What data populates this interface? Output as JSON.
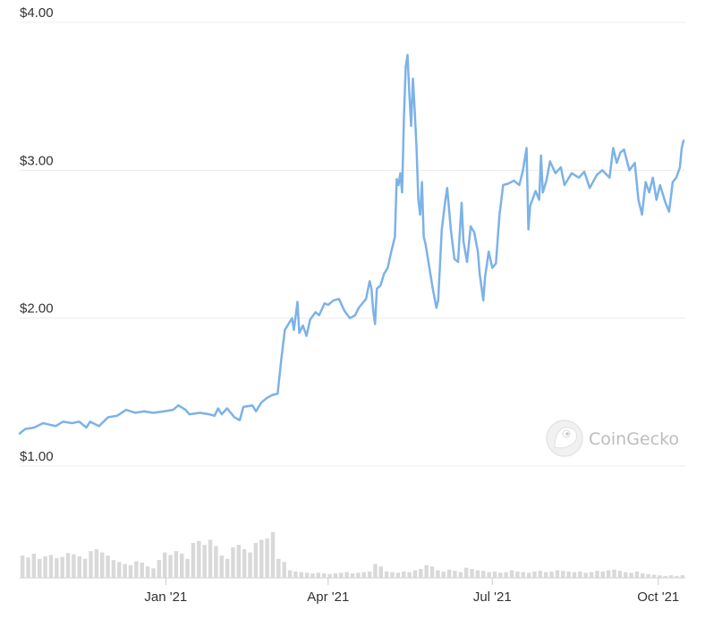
{
  "chart_data": {
    "type": "line",
    "title": "",
    "xlabel": "",
    "ylabel": "",
    "ylim": [
      1.0,
      4.0
    ],
    "grid": true,
    "y_ticks": [
      {
        "value": 1.0,
        "label": "$1.00"
      },
      {
        "value": 2.0,
        "label": "$2.00"
      },
      {
        "value": 3.0,
        "label": "$3.00"
      },
      {
        "value": 4.0,
        "label": "$4.00"
      }
    ],
    "x_ticks": [
      {
        "date": "2021-01-01",
        "label": "Jan '21"
      },
      {
        "date": "2021-04-01",
        "label": "Apr '21"
      },
      {
        "date": "2021-07-01",
        "label": "Jul '21"
      },
      {
        "date": "2021-10-01",
        "label": "Oct '21"
      }
    ],
    "xlim": [
      "2020-10-12",
      "2021-10-16"
    ],
    "series": [
      {
        "color": "#7cb2e8",
        "points": [
          [
            "2020-10-12",
            1.22
          ],
          [
            "2020-10-15",
            1.25
          ],
          [
            "2020-10-20",
            1.26
          ],
          [
            "2020-10-25",
            1.29
          ],
          [
            "2020-11-01",
            1.27
          ],
          [
            "2020-11-05",
            1.3
          ],
          [
            "2020-11-10",
            1.29
          ],
          [
            "2020-11-14",
            1.3
          ],
          [
            "2020-11-18",
            1.26
          ],
          [
            "2020-11-20",
            1.3
          ],
          [
            "2020-11-25",
            1.27
          ],
          [
            "2020-11-30",
            1.33
          ],
          [
            "2020-12-05",
            1.34
          ],
          [
            "2020-12-10",
            1.38
          ],
          [
            "2020-12-15",
            1.36
          ],
          [
            "2020-12-20",
            1.37
          ],
          [
            "2020-12-25",
            1.36
          ],
          [
            "2020-12-31",
            1.37
          ],
          [
            "2021-01-05",
            1.38
          ],
          [
            "2021-01-08",
            1.41
          ],
          [
            "2021-01-12",
            1.38
          ],
          [
            "2021-01-14",
            1.35
          ],
          [
            "2021-01-20",
            1.36
          ],
          [
            "2021-01-25",
            1.35
          ],
          [
            "2021-01-28",
            1.34
          ],
          [
            "2021-01-30",
            1.39
          ],
          [
            "2021-02-01",
            1.35
          ],
          [
            "2021-02-04",
            1.39
          ],
          [
            "2021-02-08",
            1.33
          ],
          [
            "2021-02-11",
            1.31
          ],
          [
            "2021-02-13",
            1.4
          ],
          [
            "2021-02-18",
            1.41
          ],
          [
            "2021-02-20",
            1.37
          ],
          [
            "2021-02-23",
            1.43
          ],
          [
            "2021-02-26",
            1.46
          ],
          [
            "2021-03-01",
            1.48
          ],
          [
            "2021-03-04",
            1.49
          ],
          [
            "2021-03-06",
            1.72
          ],
          [
            "2021-03-08",
            1.92
          ],
          [
            "2021-03-10",
            1.96
          ],
          [
            "2021-03-12",
            2.0
          ],
          [
            "2021-03-13",
            1.92
          ],
          [
            "2021-03-15",
            2.11
          ],
          [
            "2021-03-16",
            1.9
          ],
          [
            "2021-03-18",
            1.95
          ],
          [
            "2021-03-20",
            1.88
          ],
          [
            "2021-03-22",
            1.99
          ],
          [
            "2021-03-25",
            2.04
          ],
          [
            "2021-03-27",
            2.02
          ],
          [
            "2021-03-30",
            2.1
          ],
          [
            "2021-04-01",
            2.09
          ],
          [
            "2021-04-04",
            2.12
          ],
          [
            "2021-04-07",
            2.13
          ],
          [
            "2021-04-10",
            2.05
          ],
          [
            "2021-04-13",
            2.0
          ],
          [
            "2021-04-16",
            2.02
          ],
          [
            "2021-04-18",
            2.07
          ],
          [
            "2021-04-20",
            2.1
          ],
          [
            "2021-04-22",
            2.13
          ],
          [
            "2021-04-24",
            2.25
          ],
          [
            "2021-04-25",
            2.2
          ],
          [
            "2021-04-26",
            2.05
          ],
          [
            "2021-04-27",
            1.96
          ],
          [
            "2021-04-28",
            2.2
          ],
          [
            "2021-04-30",
            2.22
          ],
          [
            "2021-05-02",
            2.3
          ],
          [
            "2021-05-04",
            2.34
          ],
          [
            "2021-05-06",
            2.45
          ],
          [
            "2021-05-08",
            2.55
          ],
          [
            "2021-05-09",
            2.94
          ],
          [
            "2021-05-10",
            2.9
          ],
          [
            "2021-05-11",
            2.98
          ],
          [
            "2021-05-12",
            2.85
          ],
          [
            "2021-05-13",
            3.35
          ],
          [
            "2021-05-14",
            3.7
          ],
          [
            "2021-05-15",
            3.78
          ],
          [
            "2021-05-16",
            3.52
          ],
          [
            "2021-05-17",
            3.3
          ],
          [
            "2021-05-18",
            3.62
          ],
          [
            "2021-05-19",
            3.4
          ],
          [
            "2021-05-20",
            3.15
          ],
          [
            "2021-05-21",
            2.8
          ],
          [
            "2021-05-22",
            2.7
          ],
          [
            "2021-05-23",
            2.92
          ],
          [
            "2021-05-24",
            2.55
          ],
          [
            "2021-05-25",
            2.5
          ],
          [
            "2021-05-27",
            2.35
          ],
          [
            "2021-05-29",
            2.2
          ],
          [
            "2021-05-31",
            2.07
          ],
          [
            "2021-06-01",
            2.12
          ],
          [
            "2021-06-03",
            2.6
          ],
          [
            "2021-06-05",
            2.8
          ],
          [
            "2021-06-06",
            2.88
          ],
          [
            "2021-06-08",
            2.6
          ],
          [
            "2021-06-10",
            2.4
          ],
          [
            "2021-06-12",
            2.38
          ],
          [
            "2021-06-14",
            2.78
          ],
          [
            "2021-06-15",
            2.52
          ],
          [
            "2021-06-17",
            2.38
          ],
          [
            "2021-06-19",
            2.62
          ],
          [
            "2021-06-21",
            2.58
          ],
          [
            "2021-06-23",
            2.45
          ],
          [
            "2021-06-24",
            2.3
          ],
          [
            "2021-06-26",
            2.12
          ],
          [
            "2021-06-27",
            2.28
          ],
          [
            "2021-06-29",
            2.45
          ],
          [
            "2021-07-01",
            2.34
          ],
          [
            "2021-07-03",
            2.37
          ],
          [
            "2021-07-05",
            2.7
          ],
          [
            "2021-07-07",
            2.9
          ],
          [
            "2021-07-10",
            2.91
          ],
          [
            "2021-07-13",
            2.93
          ],
          [
            "2021-07-16",
            2.9
          ],
          [
            "2021-07-18",
            3.0
          ],
          [
            "2021-07-20",
            3.15
          ],
          [
            "2021-07-21",
            2.6
          ],
          [
            "2021-07-22",
            2.76
          ],
          [
            "2021-07-25",
            2.86
          ],
          [
            "2021-07-27",
            2.8
          ],
          [
            "2021-07-28",
            3.1
          ],
          [
            "2021-07-29",
            2.85
          ],
          [
            "2021-07-31",
            2.93
          ],
          [
            "2021-08-02",
            3.06
          ],
          [
            "2021-08-05",
            2.98
          ],
          [
            "2021-08-08",
            3.02
          ],
          [
            "2021-08-10",
            2.9
          ],
          [
            "2021-08-14",
            2.98
          ],
          [
            "2021-08-18",
            2.95
          ],
          [
            "2021-08-21",
            2.99
          ],
          [
            "2021-08-24",
            2.88
          ],
          [
            "2021-08-28",
            2.97
          ],
          [
            "2021-08-31",
            3.0
          ],
          [
            "2021-09-04",
            2.95
          ],
          [
            "2021-09-06",
            3.15
          ],
          [
            "2021-09-08",
            3.05
          ],
          [
            "2021-09-10",
            3.12
          ],
          [
            "2021-09-12",
            3.14
          ],
          [
            "2021-09-15",
            3.0
          ],
          [
            "2021-09-18",
            3.05
          ],
          [
            "2021-09-20",
            2.8
          ],
          [
            "2021-09-22",
            2.7
          ],
          [
            "2021-09-24",
            2.92
          ],
          [
            "2021-09-26",
            2.85
          ],
          [
            "2021-09-28",
            2.95
          ],
          [
            "2021-09-30",
            2.8
          ],
          [
            "2021-10-02",
            2.9
          ],
          [
            "2021-10-05",
            2.78
          ],
          [
            "2021-10-07",
            2.72
          ],
          [
            "2021-10-09",
            2.92
          ],
          [
            "2021-10-11",
            2.95
          ],
          [
            "2021-10-13",
            3.02
          ],
          [
            "2021-10-14",
            3.15
          ],
          [
            "2021-10-15",
            3.2
          ]
        ]
      }
    ],
    "volume": {
      "color": "#d9d9d9",
      "note": "relative trading volume bars below the price line",
      "values": [
        0.35,
        0.32,
        0.38,
        0.3,
        0.34,
        0.36,
        0.31,
        0.33,
        0.39,
        0.37,
        0.34,
        0.3,
        0.42,
        0.45,
        0.4,
        0.35,
        0.28,
        0.25,
        0.22,
        0.2,
        0.26,
        0.24,
        0.18,
        0.15,
        0.28,
        0.4,
        0.36,
        0.42,
        0.38,
        0.3,
        0.55,
        0.58,
        0.52,
        0.6,
        0.5,
        0.35,
        0.3,
        0.48,
        0.52,
        0.45,
        0.4,
        0.55,
        0.6,
        0.62,
        0.72,
        0.3,
        0.25,
        0.12,
        0.1,
        0.09,
        0.08,
        0.07,
        0.08,
        0.07,
        0.06,
        0.07,
        0.08,
        0.09,
        0.07,
        0.08,
        0.09,
        0.1,
        0.22,
        0.18,
        0.1,
        0.09,
        0.08,
        0.1,
        0.09,
        0.12,
        0.14,
        0.2,
        0.18,
        0.12,
        0.1,
        0.13,
        0.11,
        0.09,
        0.16,
        0.14,
        0.12,
        0.11,
        0.09,
        0.1,
        0.08,
        0.09,
        0.12,
        0.1,
        0.09,
        0.08,
        0.1,
        0.11,
        0.09,
        0.1,
        0.12,
        0.11,
        0.1,
        0.09,
        0.1,
        0.08,
        0.09,
        0.11,
        0.1,
        0.12,
        0.13,
        0.11,
        0.09,
        0.08,
        0.1,
        0.07,
        0.06,
        0.05,
        0.04,
        0.03,
        0.04,
        0.03,
        0.04
      ]
    }
  },
  "watermark": {
    "text": "CoinGecko",
    "icon": "gecko-logo-icon"
  }
}
